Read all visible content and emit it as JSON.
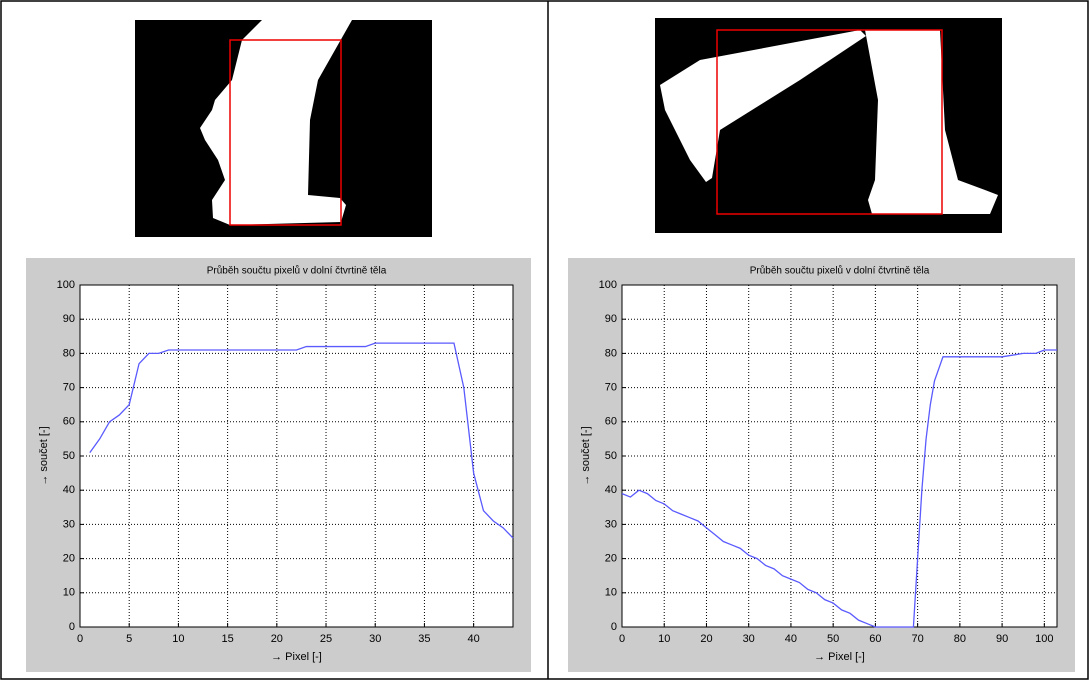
{
  "chart_data": [
    {
      "type": "line",
      "title": "Průběh součtu pixelů v dolní čtvrtině těla",
      "x_label": "→ Pixel [-]",
      "y_label": "→ součet [-]",
      "x": [
        1,
        2,
        3,
        4,
        5,
        6,
        7,
        8,
        9,
        10,
        11,
        12,
        13,
        14,
        15,
        16,
        17,
        18,
        19,
        20,
        21,
        22,
        23,
        24,
        25,
        26,
        27,
        28,
        29,
        30,
        31,
        32,
        33,
        34,
        35,
        36,
        37,
        38,
        39,
        40,
        41,
        42,
        43,
        44
      ],
      "series": [
        {
          "color": "#5a5aff",
          "values": [
            51,
            55,
            60,
            62,
            65,
            77,
            80,
            80,
            81,
            81,
            81,
            81,
            81,
            81,
            81,
            81,
            81,
            81,
            81,
            81,
            81,
            81,
            82,
            82,
            82,
            82,
            82,
            82,
            82,
            83,
            83,
            83,
            83,
            83,
            83,
            83,
            83,
            83,
            70,
            45,
            34,
            31,
            29,
            26
          ]
        }
      ],
      "xlim": [
        0,
        44
      ],
      "ylim": [
        0,
        100
      ],
      "xticks": [
        0,
        5,
        10,
        15,
        20,
        25,
        30,
        35,
        40
      ],
      "yticks": [
        0,
        10,
        20,
        30,
        40,
        50,
        60,
        70,
        80,
        90,
        100
      ],
      "grid": true
    },
    {
      "type": "line",
      "title": "Průběh součtu pixelů v dolní čtvrtině těla",
      "x_label": "→ Pixel [-]",
      "y_label": "→ součet [-]",
      "x": [
        0,
        2,
        4,
        6,
        8,
        10,
        12,
        14,
        16,
        18,
        20,
        22,
        24,
        26,
        28,
        30,
        32,
        34,
        36,
        38,
        40,
        42,
        44,
        46,
        48,
        50,
        52,
        54,
        56,
        58,
        60,
        62,
        64,
        66,
        68,
        69,
        70,
        71,
        72,
        73,
        74,
        76,
        80,
        85,
        90,
        95,
        98,
        100,
        103
      ],
      "series": [
        {
          "color": "#5a5aff",
          "values": [
            39,
            38,
            40,
            39,
            37,
            36,
            34,
            33,
            32,
            31,
            29,
            27,
            25,
            24,
            23,
            21,
            20,
            18,
            17,
            15,
            14,
            13,
            11,
            10,
            8,
            7,
            5,
            4,
            2,
            1,
            0,
            0,
            0,
            0,
            0,
            0,
            20,
            40,
            55,
            65,
            72,
            79,
            79,
            79,
            79,
            80,
            80,
            81,
            81
          ]
        }
      ],
      "xlim": [
        0,
        103
      ],
      "ylim": [
        0,
        100
      ],
      "xticks": [
        0,
        10,
        20,
        30,
        40,
        50,
        60,
        70,
        80,
        90,
        100
      ],
      "yticks": [
        0,
        10,
        20,
        30,
        40,
        50,
        60,
        70,
        80,
        90,
        100
      ],
      "grid": true
    }
  ]
}
